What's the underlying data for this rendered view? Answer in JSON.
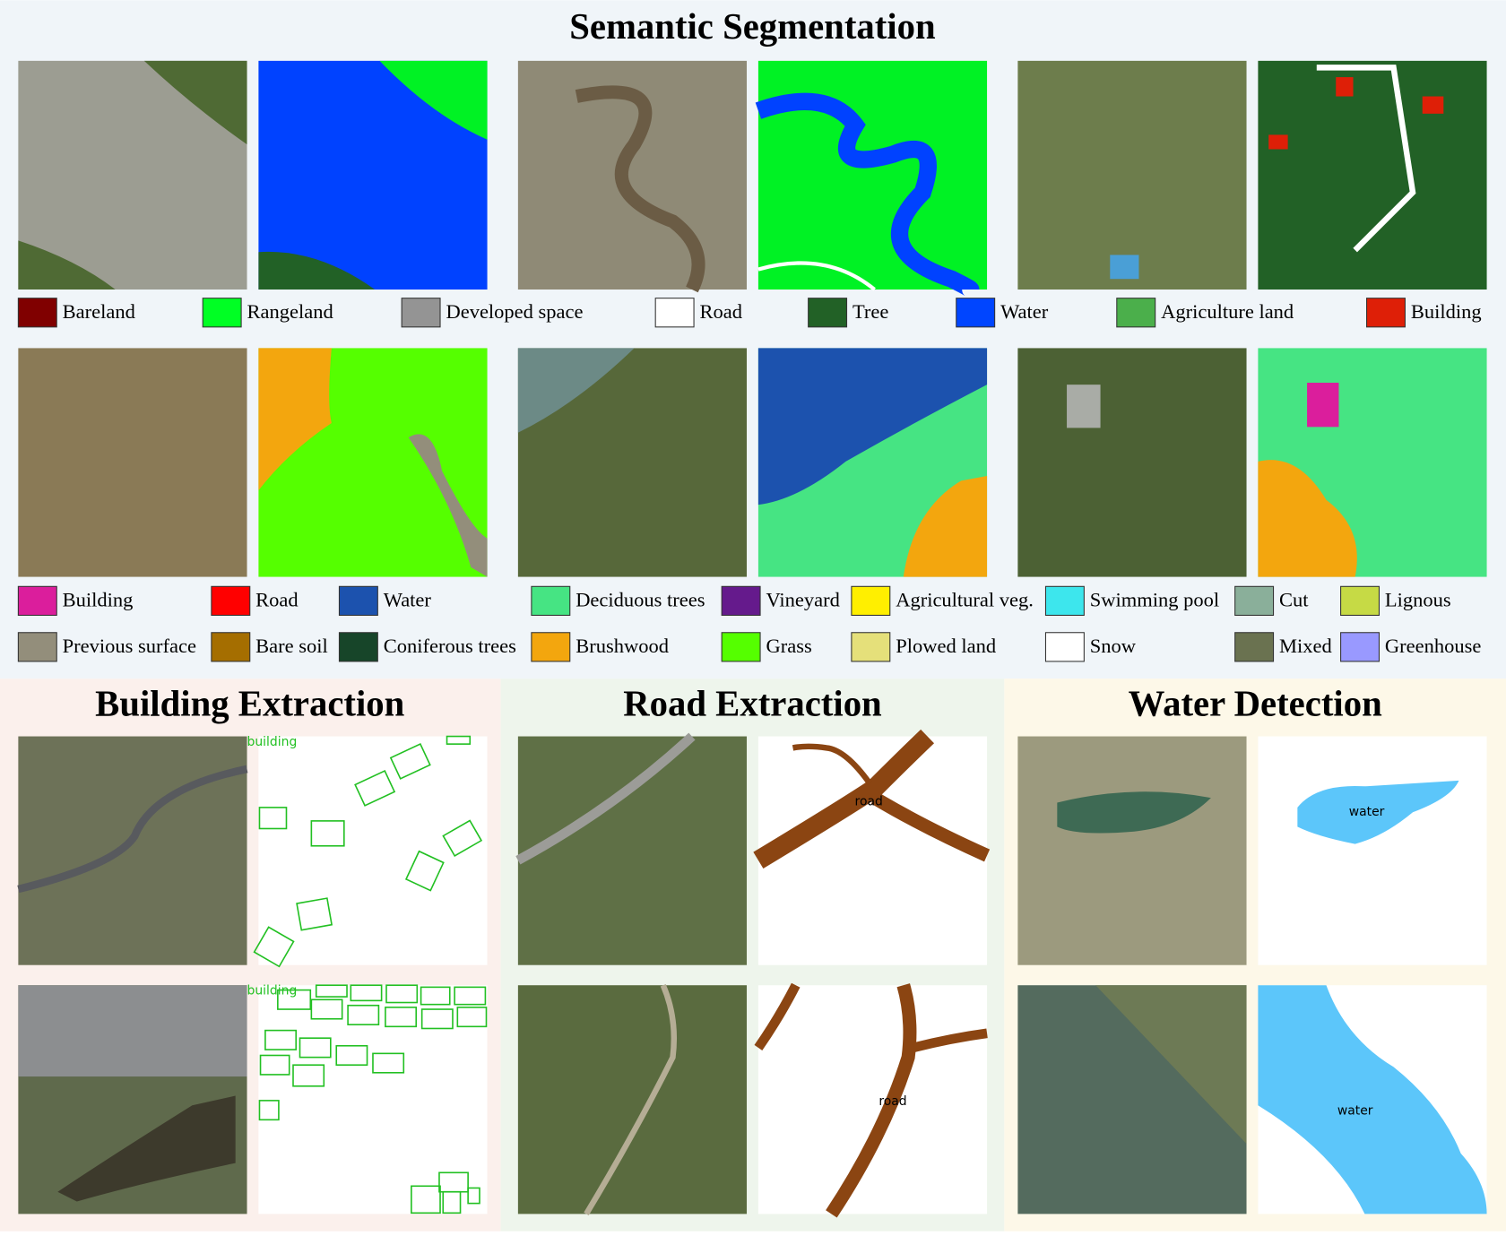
{
  "semantic_segmentation": {
    "title": "Semantic Segmentation",
    "legend_1": [
      {
        "label": "Bareland",
        "color": "#800000"
      },
      {
        "label": "Rangeland",
        "color": "#00ff24"
      },
      {
        "label": "Developed space",
        "color": "#949494"
      },
      {
        "label": "Road",
        "color": "#ffffff"
      },
      {
        "label": "Tree",
        "color": "#226126"
      },
      {
        "label": "Water",
        "color": "#0045ff"
      },
      {
        "label": "Agriculture land",
        "color": "#4baf4b"
      },
      {
        "label": "Building",
        "color": "#de1f07"
      }
    ],
    "legend_2": [
      {
        "label": "Building",
        "color": "#db1e9c"
      },
      {
        "label": "Road",
        "color": "#ff0000"
      },
      {
        "label": "Water",
        "color": "#1c52ae"
      },
      {
        "label": "Deciduous trees",
        "color": "#46e483"
      },
      {
        "label": "Vineyard",
        "color": "#651a8c"
      },
      {
        "label": "Agricultural veg.",
        "color": "#ffef00"
      },
      {
        "label": "Swimming pool",
        "color": "#3de6ed"
      },
      {
        "label": "Cut",
        "color": "#8aaf9a"
      },
      {
        "label": "Lignous",
        "color": "#c6da45"
      },
      {
        "label": "Previous surface",
        "color": "#938e7b"
      },
      {
        "label": "Bare soil",
        "color": "#a56e00"
      },
      {
        "label": "Coniferous trees",
        "color": "#174529"
      },
      {
        "label": "Brushwood",
        "color": "#f3a60e"
      },
      {
        "label": "Grass",
        "color": "#55ff00"
      },
      {
        "label": "Plowed land",
        "color": "#e5e07a"
      },
      {
        "label": "Snow",
        "color": "#ffffff"
      },
      {
        "label": "Mixed",
        "color": "#6a7250"
      },
      {
        "label": "Greenhouse",
        "color": "#9999ff"
      }
    ]
  },
  "building_extraction": {
    "title": "Building Extraction",
    "mask_labels": [
      "building",
      "building"
    ]
  },
  "road_extraction": {
    "title": "Road Extraction",
    "mask_labels": [
      "road",
      "road"
    ]
  },
  "water_detection": {
    "title": "Water Detection",
    "mask_labels": [
      "water",
      "water"
    ]
  }
}
